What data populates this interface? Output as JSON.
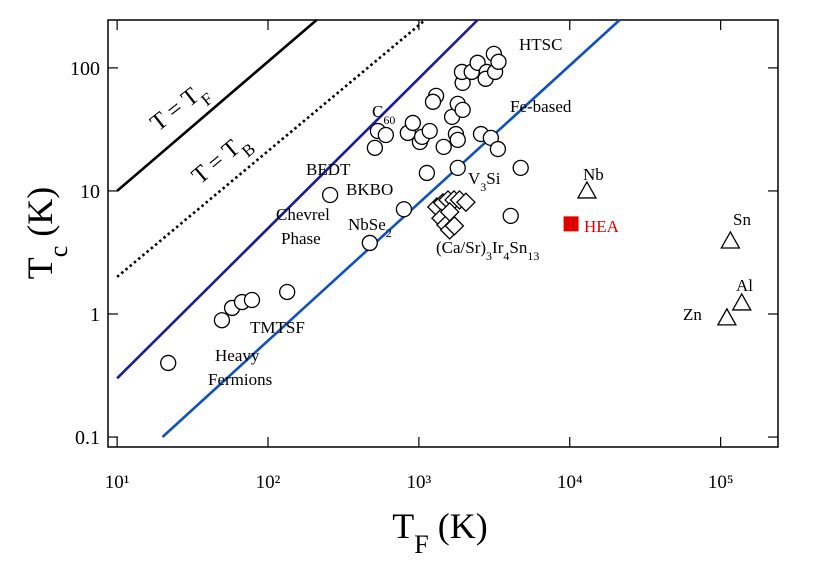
{
  "chart_data": {
    "type": "scatter",
    "xlabel": [
      "T",
      "F",
      " (K)"
    ],
    "ylabel": [
      "T",
      "c",
      " (K)"
    ],
    "xscale": "log",
    "yscale": "log",
    "xlim": [
      8.7,
      240000
    ],
    "ylim": [
      0.083,
      245
    ],
    "xticks": [
      {
        "value": 10,
        "label": "10¹"
      },
      {
        "value": 100,
        "label": "10²"
      },
      {
        "value": 1000,
        "label": "10³"
      },
      {
        "value": 10000,
        "label": "10⁴"
      },
      {
        "value": 100000,
        "label": "10⁵"
      }
    ],
    "yticks": [
      0.1,
      1,
      10,
      100
    ],
    "lines": [
      {
        "x": [
          10,
          210
        ],
        "values": [
          10,
          245
        ],
        "color": "#000000",
        "style": "solid"
      },
      {
        "x": [
          10,
          1100
        ],
        "values": [
          2,
          245
        ],
        "color": "#000000",
        "style": "dotted"
      },
      {
        "x": [
          10,
          2450
        ],
        "values": [
          0.3,
          245
        ],
        "color": "#1a1a9c",
        "style": "solid"
      },
      {
        "x": [
          20,
          21400
        ],
        "values": [
          0.1,
          245
        ],
        "color": "#1050c0",
        "style": "solid"
      }
    ],
    "series": [
      {
        "marker": "circle",
        "color": "#000000",
        "x": [
          21.8,
          49.5,
          57.8,
          67.3,
          78.3,
          134,
          473,
          796,
          1130,
          1810,
          4730,
          4060,
          258,
          511,
          535,
          604,
          845,
          912,
          1016,
          1050,
          1180,
          1300,
          1240,
          1460,
          1660,
          1810,
          1950,
          1760,
          1810,
          1950,
          1930,
          2240,
          2450,
          2820,
          2770,
          3140,
          3200,
          3370,
          2580,
          3000,
          3340
        ],
        "values": [
          0.4,
          0.89,
          1.12,
          1.25,
          1.3,
          1.51,
          3.78,
          7.1,
          14,
          15.4,
          15.4,
          6.27,
          9.27,
          22.4,
          30.7,
          28.5,
          29.6,
          35.7,
          25,
          27.5,
          30.7,
          59.2,
          53,
          22.8,
          40,
          51,
          45.6,
          29,
          26,
          75.5,
          92.7,
          92.7,
          110,
          92.7,
          81.5,
          130,
          92.7,
          112,
          29,
          27,
          21.9
        ]
      },
      {
        "marker": "diamond",
        "color": "#000000",
        "x": [
          1315,
          1440,
          1560,
          1710,
          1860,
          2050,
          1400,
          1510,
          1600,
          1720,
          1600
        ],
        "values": [
          7.41,
          8,
          8.45,
          8.45,
          8.45,
          8.1,
          6,
          5.3,
          4.82,
          5.2,
          6.75
        ]
      },
      {
        "marker": "triangle",
        "color": "#000000",
        "x": [
          13000,
          116000,
          138000,
          110000
        ],
        "values": [
          10,
          3.92,
          1.23,
          0.93
        ]
      },
      {
        "marker": "square",
        "color": "#e00000",
        "x": [
          10200
        ],
        "values": [
          5.4
        ]
      }
    ],
    "annotations": [
      {
        "parts": [
          "HTSC"
        ],
        "color": "#000000"
      },
      {
        "parts": [
          "Fe-based"
        ],
        "color": "#000000"
      },
      {
        "parts": [
          "C",
          "60"
        ],
        "color": "#000000"
      },
      {
        "parts": [
          "BEDT"
        ],
        "color": "#000000"
      },
      {
        "parts": [
          "BKBO"
        ],
        "color": "#000000"
      },
      {
        "parts": [
          "V",
          "3",
          "Si"
        ],
        "color": "#000000"
      },
      {
        "parts": [
          "Nb"
        ],
        "color": "#000000"
      },
      {
        "parts": [
          "Sn"
        ],
        "color": "#000000"
      },
      {
        "parts": [
          "Al"
        ],
        "color": "#000000"
      },
      {
        "parts": [
          "Zn"
        ],
        "color": "#000000"
      },
      {
        "parts": [
          "HEA"
        ],
        "color": "#e00000"
      },
      {
        "parts": [
          "Chevrel"
        ],
        "color": "#000000"
      },
      {
        "parts": [
          "Phase"
        ],
        "color": "#000000"
      },
      {
        "parts": [
          "NbSe",
          "2"
        ],
        "color": "#000000"
      },
      {
        "parts": [
          "(Ca/Sr)",
          "3",
          "Ir",
          "4",
          "Sn",
          "13"
        ],
        "color": "#000000"
      },
      {
        "parts": [
          "TMTSF"
        ],
        "color": "#000000"
      },
      {
        "parts": [
          "Heavy"
        ],
        "color": "#000000"
      },
      {
        "parts": [
          "Fermions"
        ],
        "color": "#000000"
      },
      {
        "parts": [
          "T = T",
          "F"
        ],
        "color": "#000000"
      },
      {
        "parts": [
          "T = T",
          "B"
        ],
        "color": "#000000"
      }
    ]
  }
}
